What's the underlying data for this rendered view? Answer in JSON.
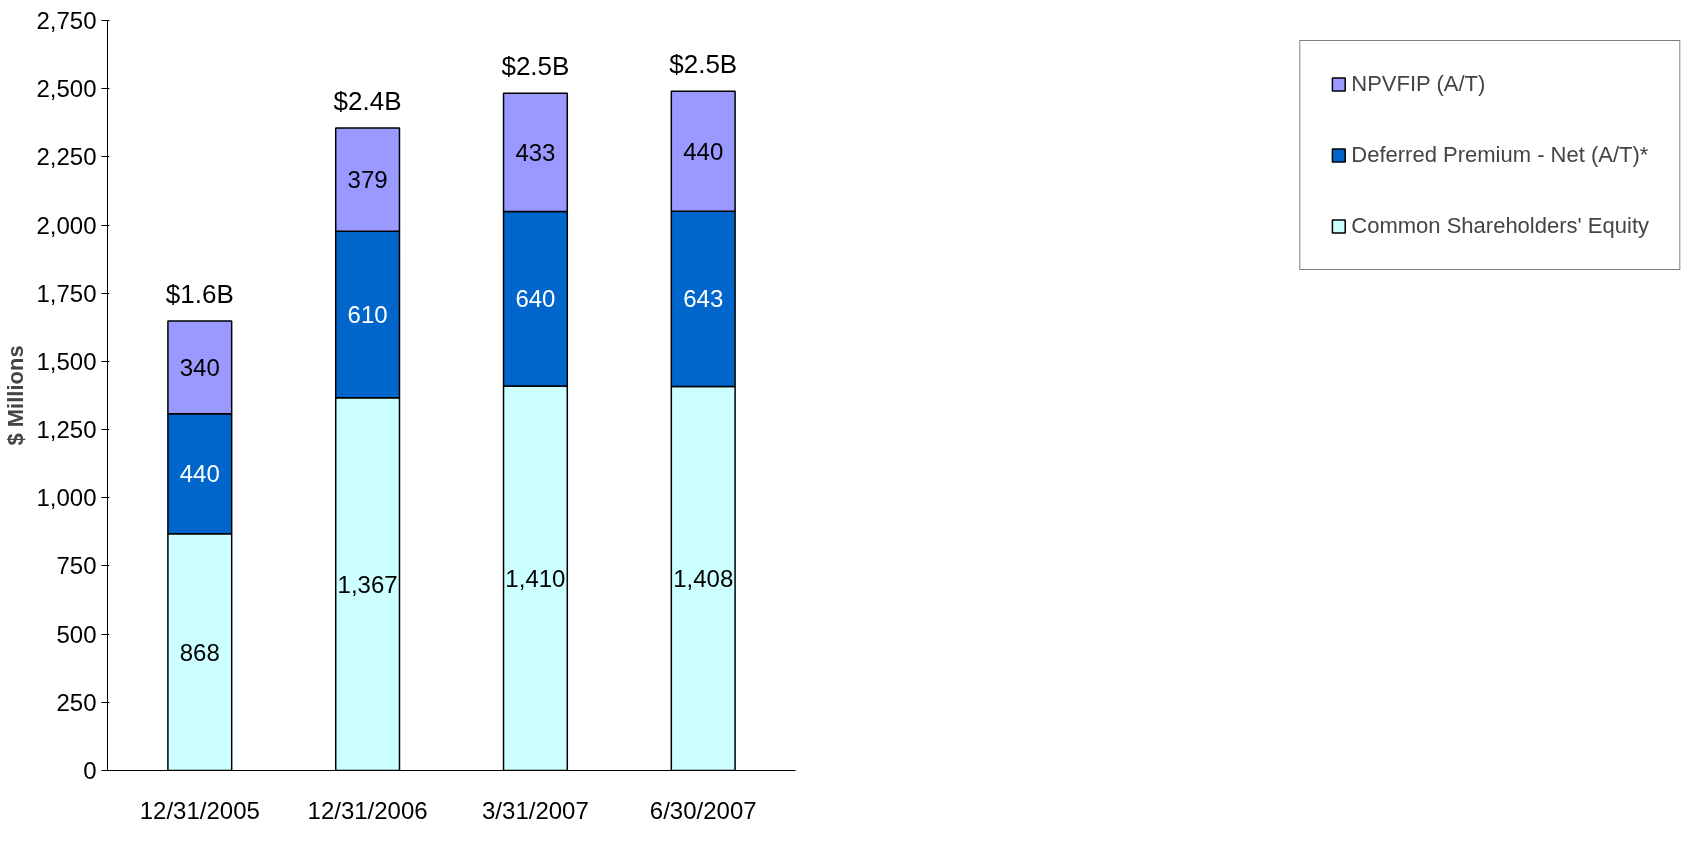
{
  "chart_data": {
    "type": "bar",
    "stacked": true,
    "ylabel": "$ Millions",
    "categories": [
      "12/31/2005",
      "12/31/2006",
      "3/31/2007",
      "6/30/2007"
    ],
    "series": [
      {
        "name": "Common Shareholders' Equity",
        "color": "#ccffff",
        "values": [
          868,
          1367,
          1410,
          1408
        ],
        "value_labels": [
          "868",
          "1,367",
          "1,410",
          "1,408"
        ]
      },
      {
        "name": "Deferred Premium - Net (A/T)*",
        "color": "#0066cc",
        "values": [
          440,
          610,
          640,
          643
        ],
        "value_labels": [
          "440",
          "610",
          "640",
          "643"
        ]
      },
      {
        "name": "NPVFIP (A/T)",
        "color": "#9999ff",
        "values": [
          340,
          379,
          433,
          440
        ],
        "value_labels": [
          "340",
          "379",
          "433",
          "440"
        ]
      }
    ],
    "totals": [
      "$1.6B",
      "$2.4B",
      "$2.5B",
      "$2.5B"
    ],
    "ylim": [
      0,
      2750
    ],
    "yticks": [
      0,
      250,
      500,
      750,
      {
        "value": 1000,
        "label": "1,000"
      },
      {
        "value": 1250,
        "label": "1,250"
      },
      {
        "value": 1500,
        "label": "1,500"
      },
      {
        "value": 1750,
        "label": "1,750"
      },
      {
        "value": 2000,
        "label": "2,000"
      },
      {
        "value": 2250,
        "label": "2,250"
      },
      {
        "value": 2500,
        "label": "2,500"
      },
      {
        "value": 2750,
        "label": "2,750"
      }
    ],
    "grid": false,
    "legend": "right"
  }
}
